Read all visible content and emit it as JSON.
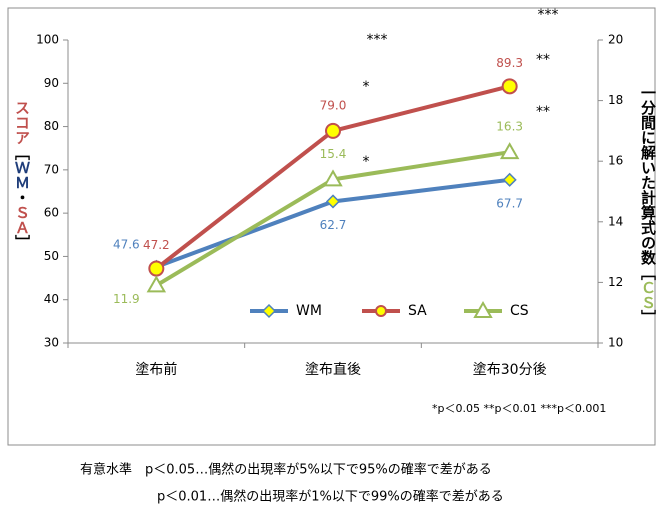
{
  "chart_data": {
    "type": "line",
    "categories": [
      "塗布前",
      "塗布直後",
      "塗布30分後"
    ],
    "series": [
      {
        "name": "WM",
        "color": "#4f81bd",
        "marker": "diamond",
        "values": [
          47.6,
          62.7,
          67.7
        ],
        "value_labels": [
          "47.6",
          "62.7",
          "67.7"
        ]
      },
      {
        "name": "SA",
        "color": "#c0504d",
        "marker": "circle",
        "values": [
          47.2,
          79.0,
          89.3
        ],
        "value_labels": [
          "47.2",
          "79.0",
          "89.3"
        ]
      },
      {
        "name": "CS",
        "color": "#9bbb59",
        "marker": "triangle",
        "axis": "y2",
        "values": [
          11.9,
          15.4,
          16.3
        ],
        "value_labels": [
          "11.9",
          "15.4",
          "16.3"
        ]
      }
    ],
    "ylim": [
      30,
      100
    ],
    "yticks": [
      30,
      40,
      50,
      60,
      70,
      80,
      90,
      100
    ],
    "y2lim": [
      10,
      20
    ],
    "y2ticks": [
      10,
      12,
      14,
      16,
      18,
      20
    ],
    "ylabel": [
      {
        "text": "スコア",
        "color": "#c0504d"
      },
      {
        "text": "［",
        "color": "#000000"
      },
      {
        "text": "ＷＭ",
        "color": "#1f3d7a"
      },
      {
        "text": "・",
        "color": "#000000"
      },
      {
        "text": "ＳＡ",
        "color": "#c0504d"
      },
      {
        "text": "］",
        "color": "#000000"
      }
    ],
    "y2label": [
      {
        "text": "一分間に解いた計算式の数",
        "color": "#000000"
      },
      {
        "text": "［",
        "color": "#000000"
      },
      {
        "text": "ＣＳ",
        "color": "#9bbb59"
      },
      {
        "text": "］",
        "color": "#000000"
      }
    ],
    "annotations": [
      "***",
      "***",
      "*",
      "**",
      "**",
      "*"
    ],
    "footnote": "*p＜0.05 **p＜0.01 ***p＜0.001",
    "legend": "lower right",
    "grid": false
  },
  "notes": [
    "有意水準　p＜0.05…偶然の出現率が5%以下で95%の確率で差がある",
    "p＜0.01…偶然の出現率が1%以下で99%の確率で差がある"
  ]
}
